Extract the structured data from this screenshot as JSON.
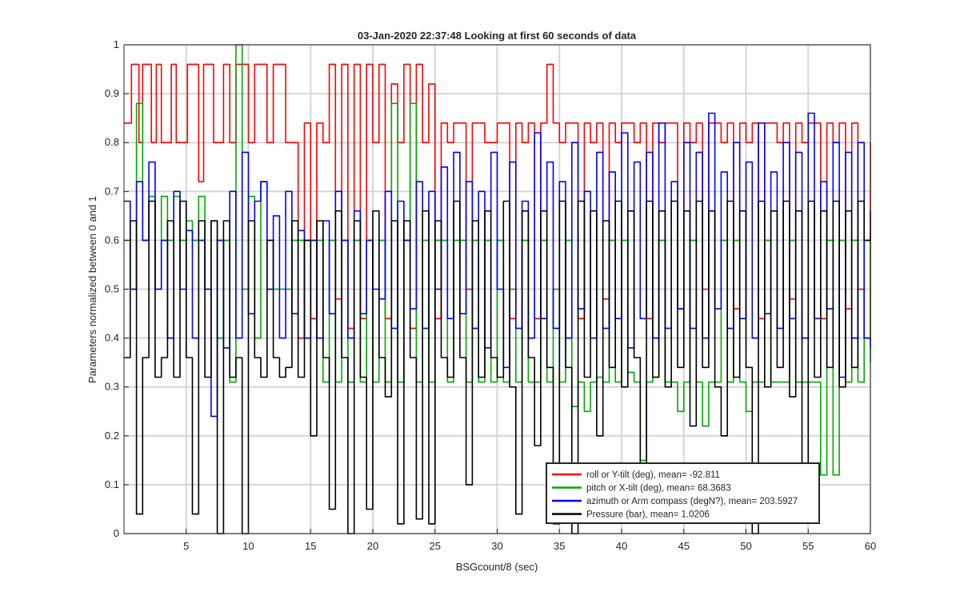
{
  "chart_data": {
    "type": "line",
    "title": "03-Jan-2020 22:37:48 Looking at first 60 seconds of data",
    "xlabel": "BSGcount/8 (sec)",
    "ylabel": "Parameters normalized between 0 and 1",
    "xlim": [
      0,
      60
    ],
    "ylim": [
      0,
      1
    ],
    "xticks": [
      5,
      10,
      15,
      20,
      25,
      30,
      35,
      40,
      45,
      50,
      55,
      60
    ],
    "yticks": [
      0,
      0.1,
      0.2,
      0.3,
      0.4,
      0.5,
      0.6,
      0.7,
      0.8,
      0.9,
      1
    ],
    "grid": true,
    "legend_position": "bottom-right",
    "series": [
      {
        "name": "roll or Y-tilt (deg), mean= -92.811",
        "color": "#ff0000",
        "x": [
          0,
          0.6,
          1.2,
          1.5,
          1.8,
          2.2,
          2.6,
          3,
          3.4,
          3.8,
          4.2,
          4.6,
          5.1,
          5.6,
          6,
          6.4,
          6.8,
          7.2,
          7.6,
          8,
          8.5,
          9,
          9.5,
          10,
          10.5,
          11,
          11.5,
          12,
          12.5,
          13,
          13.5,
          14,
          14.5,
          15,
          15.5,
          16,
          16.5,
          17,
          17.5,
          18,
          18.5,
          19,
          19.5,
          20,
          20.5,
          21,
          21.5,
          22,
          22.5,
          23,
          23.5,
          24,
          24.5,
          25,
          25.5,
          26,
          26.5,
          27,
          27.5,
          28,
          28.5,
          29,
          29.5,
          30,
          30.5,
          31,
          31.5,
          32,
          32.5,
          33,
          33.5,
          34,
          34.5,
          35,
          35.5,
          36,
          36.5,
          37,
          37.5,
          38,
          38.5,
          39,
          39.5,
          40,
          40.5,
          41,
          41.5,
          42,
          42.5,
          43,
          43.5,
          44,
          44.5,
          45,
          45.5,
          46,
          46.5,
          47,
          47.5,
          48,
          48.5,
          49,
          49.5,
          50,
          50.5,
          51,
          51.5,
          52,
          52.5,
          53,
          53.5,
          54,
          54.5,
          55,
          55.5,
          56,
          56.5,
          57,
          57.5,
          58,
          58.5,
          59,
          59.5,
          60
        ],
        "y": [
          0.84,
          0.96,
          0.8,
          0.96,
          0.96,
          0.8,
          0.96,
          0.8,
          0.8,
          0.96,
          0.8,
          0.8,
          0.96,
          0.96,
          0.72,
          0.96,
          0.96,
          0.8,
          0.8,
          0.96,
          0.8,
          0.96,
          0.96,
          0.8,
          0.96,
          0.96,
          0.8,
          0.96,
          0.96,
          0.8,
          0.8,
          0.4,
          0.84,
          0.44,
          0.84,
          0.8,
          0.96,
          0.48,
          0.96,
          0.42,
          0.96,
          0.44,
          0.96,
          0.8,
          0.96,
          0.44,
          0.92,
          0.8,
          0.96,
          0.42,
          0.96,
          0.8,
          0.92,
          0.44,
          0.84,
          0.8,
          0.84,
          0.84,
          0.5,
          0.84,
          0.84,
          0.8,
          0.8,
          0.84,
          0.84,
          0.44,
          0.84,
          0.8,
          0.84,
          0.44,
          0.84,
          0.96,
          0.84,
          0.8,
          0.84,
          0.84,
          0.44,
          0.84,
          0.8,
          0.84,
          0.48,
          0.84,
          0.8,
          0.84,
          0.84,
          0.8,
          0.84,
          0.44,
          0.84,
          0.8,
          0.84,
          0.84,
          0.46,
          0.84,
          0.8,
          0.84,
          0.5,
          0.84,
          0.84,
          0.8,
          0.84,
          0.46,
          0.84,
          0.8,
          0.84,
          0.44,
          0.84,
          0.84,
          0.8,
          0.84,
          0.48,
          0.84,
          0.8,
          0.84,
          0.84,
          0.44,
          0.84,
          0.8,
          0.84,
          0.46,
          0.84,
          0.5,
          0.4,
          0.8
        ]
      },
      {
        "name": "pitch or X-tilt (deg), mean= 68.3683",
        "color": "#00aa00",
        "x": [
          0,
          0.5,
          1,
          1.5,
          2,
          2.5,
          3,
          3.5,
          4,
          4.5,
          5,
          5.5,
          6,
          6.5,
          7,
          7.5,
          8,
          8.5,
          9,
          9.5,
          10,
          10.5,
          11,
          11.5,
          12,
          12.5,
          13,
          13.5,
          14,
          14.5,
          15,
          15.5,
          16,
          16.5,
          17,
          17.5,
          18,
          18.5,
          19,
          19.5,
          20,
          20.5,
          21,
          21.5,
          22,
          22.5,
          23,
          23.5,
          24,
          24.5,
          25,
          25.5,
          26,
          26.5,
          27,
          27.5,
          28,
          28.5,
          29,
          29.5,
          30,
          30.5,
          31,
          31.5,
          32,
          32.5,
          33,
          33.5,
          34,
          34.5,
          35,
          35.5,
          36,
          36.5,
          37,
          37.5,
          38,
          38.5,
          39,
          39.5,
          40,
          40.5,
          41,
          41.5,
          42,
          42.5,
          43,
          43.5,
          44,
          44.5,
          45,
          45.5,
          46,
          46.5,
          47,
          47.5,
          48,
          48.5,
          49,
          49.5,
          50,
          50.5,
          51,
          51.5,
          52,
          52.5,
          53,
          53.5,
          54,
          54.5,
          55,
          55.5,
          56,
          56.5,
          57,
          57.5,
          58,
          58.5,
          59,
          59.5,
          60
        ],
        "y": [
          0.6,
          0.5,
          0.88,
          0.6,
          0.69,
          0.5,
          0.69,
          0.6,
          0.69,
          0.6,
          0.64,
          0.6,
          0.69,
          0.5,
          0.64,
          0.4,
          0.6,
          0.31,
          1.0,
          0.5,
          0.69,
          0.4,
          0.72,
          0.5,
          0.5,
          0.5,
          0.5,
          0.6,
          0.6,
          0.6,
          0.6,
          0.6,
          0.31,
          0.6,
          0.31,
          0.6,
          0.31,
          0.6,
          0.31,
          0.6,
          0.31,
          0.6,
          0.31,
          0.88,
          0.31,
          0.6,
          0.88,
          0.31,
          0.6,
          0.31,
          0.6,
          0.6,
          0.31,
          0.6,
          0.6,
          0.31,
          0.6,
          0.31,
          0.6,
          0.31,
          0.6,
          0.31,
          0.5,
          0.31,
          0.6,
          0.31,
          0.31,
          0.6,
          0.31,
          0.5,
          0.31,
          0.6,
          0.26,
          0.31,
          0.25,
          0.31,
          0.32,
          0.31,
          0.6,
          0.31,
          0.6,
          0.33,
          0.31,
          0.15,
          0.31,
          0.32,
          0.6,
          0.31,
          0.31,
          0.25,
          0.31,
          0.6,
          0.31,
          0.22,
          0.31,
          0.31,
          0.6,
          0.31,
          0.6,
          0.31,
          0.25,
          0.31,
          0.31,
          0.6,
          0.31,
          0.31,
          0.31,
          0.6,
          0.31,
          0.31,
          0.31,
          0.31,
          0.12,
          0.6,
          0.12,
          0.6,
          0.31,
          0.6,
          0.31,
          0.6,
          0.35
        ]
      },
      {
        "name": "azimuth or Arm compass (degN?), mean= 203.5927",
        "color": "#0000ff",
        "x": [
          0,
          0.5,
          1,
          1.5,
          2,
          2.5,
          3,
          3.5,
          4,
          4.5,
          5,
          5.5,
          6,
          6.5,
          7,
          7.5,
          8,
          8.5,
          9,
          9.5,
          10,
          10.5,
          11,
          11.5,
          12,
          12.5,
          13,
          13.5,
          14,
          14.5,
          15,
          15.5,
          16,
          16.5,
          17,
          17.5,
          18,
          18.5,
          19,
          19.5,
          20,
          20.5,
          21,
          21.5,
          22,
          22.5,
          23,
          23.5,
          24,
          24.5,
          25,
          25.5,
          26,
          26.5,
          27,
          27.5,
          28,
          28.5,
          29,
          29.5,
          30,
          30.5,
          31,
          31.5,
          32,
          32.5,
          33,
          33.5,
          34,
          34.5,
          35,
          35.5,
          36,
          36.5,
          37,
          37.5,
          38,
          38.5,
          39,
          39.5,
          40,
          40.5,
          41,
          41.5,
          42,
          42.5,
          43,
          43.5,
          44,
          44.5,
          45,
          45.5,
          46,
          46.5,
          47,
          47.5,
          48,
          48.5,
          49,
          49.5,
          50,
          50.5,
          51,
          51.5,
          52,
          52.5,
          53,
          53.5,
          54,
          54.5,
          55,
          55.5,
          56,
          56.5,
          57,
          57.5,
          58,
          58.5,
          59,
          59.5,
          60
        ],
        "y": [
          0.68,
          0.5,
          0.72,
          0.6,
          0.76,
          0.5,
          0.6,
          0.4,
          0.7,
          0.5,
          0.62,
          0.4,
          0.6,
          0.5,
          0.24,
          0.6,
          0.38,
          0.7,
          0.4,
          0.78,
          0.45,
          0.68,
          0.72,
          0.5,
          0.65,
          0.4,
          0.7,
          0.45,
          0.62,
          0.4,
          0.6,
          0.4,
          0.64,
          0.45,
          0.7,
          0.6,
          0.4,
          0.66,
          0.45,
          0.6,
          0.5,
          0.48,
          0.7,
          0.42,
          0.68,
          0.6,
          0.46,
          0.72,
          0.42,
          0.7,
          0.5,
          0.75,
          0.44,
          0.78,
          0.45,
          0.72,
          0.42,
          0.7,
          0.38,
          0.78,
          0.5,
          0.34,
          0.76,
          0.42,
          0.68,
          0.4,
          0.82,
          0.44,
          0.76,
          0.42,
          0.72,
          0.4,
          0.8,
          0.46,
          0.7,
          0.4,
          0.78,
          0.42,
          0.74,
          0.44,
          0.82,
          0.38,
          0.76,
          0.44,
          0.78,
          0.4,
          0.84,
          0.42,
          0.72,
          0.46,
          0.8,
          0.42,
          0.78,
          0.4,
          0.86,
          0.46,
          0.74,
          0.42,
          0.8,
          0.44,
          0.76,
          0.4,
          0.84,
          0.45,
          0.74,
          0.42,
          0.8,
          0.44,
          0.78,
          0.4,
          0.86,
          0.44,
          0.72,
          0.46,
          0.8,
          0.32,
          0.78,
          0.4,
          0.8,
          0.4,
          0.38
        ]
      },
      {
        "name": "Pressure (bar), mean= 1.0206",
        "color": "#000000",
        "x": [
          0,
          0.5,
          1,
          1.5,
          2,
          2.5,
          3,
          3.5,
          4,
          4.5,
          5,
          5.5,
          6,
          6.5,
          7,
          7.5,
          8,
          8.5,
          9,
          9.5,
          10,
          10.5,
          11,
          11.5,
          12,
          12.5,
          13,
          13.5,
          14,
          14.5,
          15,
          15.5,
          16,
          16.5,
          17,
          17.5,
          18,
          18.5,
          19,
          19.5,
          20,
          20.5,
          21,
          21.5,
          22,
          22.5,
          23,
          23.5,
          24,
          24.5,
          25,
          25.5,
          26,
          26.5,
          27,
          27.5,
          28,
          28.5,
          29,
          29.5,
          30,
          30.5,
          31,
          31.5,
          32,
          32.5,
          33,
          33.5,
          34,
          34.5,
          35,
          35.5,
          36,
          36.5,
          37,
          37.5,
          38,
          38.5,
          39,
          39.5,
          40,
          40.5,
          41,
          41.5,
          42,
          42.5,
          43,
          43.5,
          44,
          44.5,
          45,
          45.5,
          46,
          46.5,
          47,
          47.5,
          48,
          48.5,
          49,
          49.5,
          50,
          50.5,
          51,
          51.5,
          52,
          52.5,
          53,
          53.5,
          54,
          54.5,
          55,
          55.5,
          56,
          56.5,
          57,
          57.5,
          58,
          58.5,
          59,
          59.5,
          60
        ],
        "y": [
          0.36,
          0.64,
          0.04,
          0.36,
          0.68,
          0.32,
          0.36,
          0.64,
          0.32,
          0.68,
          0.36,
          0.04,
          0.64,
          0.32,
          0.64,
          0.0,
          0.64,
          0.32,
          0.36,
          0.0,
          0.64,
          0.36,
          0.32,
          0.6,
          0.36,
          0.32,
          0.34,
          0.64,
          0.32,
          0.6,
          0.2,
          0.64,
          0.36,
          0.05,
          0.66,
          0.36,
          0.0,
          0.64,
          0.32,
          0.05,
          0.66,
          0.36,
          0.28,
          0.64,
          0.02,
          0.64,
          0.36,
          0.03,
          0.66,
          0.02,
          0.64,
          0.36,
          0.32,
          0.68,
          0.36,
          0.1,
          0.64,
          0.32,
          0.66,
          0.36,
          0.32,
          0.68,
          0.3,
          0.04,
          0.66,
          0.36,
          0.18,
          0.66,
          0.34,
          0.02,
          0.68,
          0.34,
          0.0,
          0.68,
          0.32,
          0.66,
          0.2,
          0.64,
          0.34,
          0.68,
          0.3,
          0.66,
          0.36,
          0.08,
          0.68,
          0.32,
          0.66,
          0.3,
          0.68,
          0.34,
          0.66,
          0.22,
          0.68,
          0.34,
          0.66,
          0.3,
          0.2,
          0.68,
          0.32,
          0.66,
          0.34,
          0.0,
          0.68,
          0.3,
          0.66,
          0.34,
          0.68,
          0.28,
          0.66,
          0.1,
          0.68,
          0.32,
          0.66,
          0.34,
          0.68,
          0.3,
          0.66,
          0.34,
          0.68,
          0.6,
          0.66
        ]
      }
    ]
  }
}
